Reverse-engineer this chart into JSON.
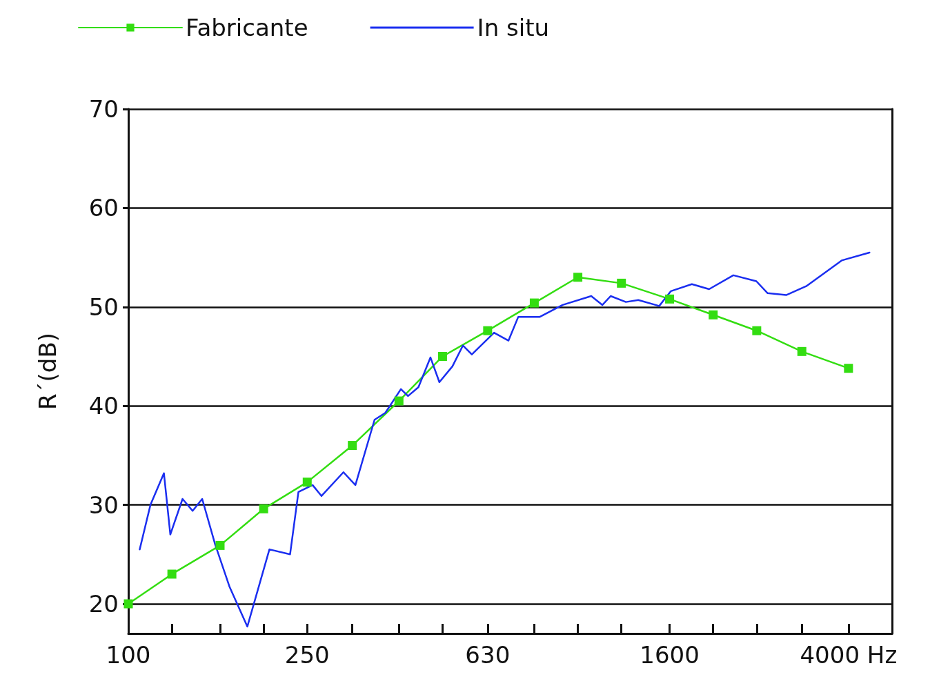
{
  "chart_data": {
    "type": "line",
    "ylabel": "R´(dB)",
    "legend": "top left",
    "grid": "y",
    "log": "x",
    "xlim": [
      100,
      5000
    ],
    "ylim": [
      17,
      70
    ],
    "yticks": [
      20,
      30,
      40,
      50,
      60,
      70
    ],
    "xticks": [
      100,
      {
        "value": 125,
        "label": null
      },
      {
        "value": 160,
        "label": null
      },
      {
        "value": 200,
        "label": null
      },
      250,
      {
        "value": 315,
        "label": null
      },
      {
        "value": 400,
        "label": null
      },
      {
        "value": 500,
        "label": null
      },
      630,
      {
        "value": 800,
        "label": null
      },
      {
        "value": 1000,
        "label": null
      },
      {
        "value": 1250,
        "label": null
      },
      1600,
      {
        "value": 2000,
        "label": null
      },
      {
        "value": 2500,
        "label": null
      },
      {
        "value": 3150,
        "label": null
      },
      {
        "value": 4000,
        "label": "4000 Hz"
      },
      {
        "value": 5000,
        "label": null
      }
    ],
    "series": [
      {
        "name": "Fabricante",
        "color": "#33dd11",
        "marker": "square",
        "x": [
          100,
          125,
          160,
          200,
          250,
          315,
          400,
          500,
          630,
          800,
          1000,
          1250,
          1600,
          2000,
          2500,
          3150,
          4000
        ],
        "values": [
          20,
          23.0,
          25.9,
          29.6,
          32.3,
          36.0,
          40.5,
          45.0,
          47.6,
          50.4,
          53.0,
          52.4,
          50.8,
          49.2,
          47.6,
          45.5,
          43.8
        ]
      },
      {
        "name": "In situ",
        "color": "#1a2ef0",
        "marker": "none",
        "x": [
          106,
          112,
          120,
          124,
          132,
          139,
          146,
          156,
          168,
          184,
          206,
          229,
          239,
          257,
          269,
          301,
          320,
          353,
          373,
          404,
          419,
          442,
          470,
          492,
          526,
          555,
          581,
          651,
          701,
          737,
          823,
          925,
          1071,
          1134,
          1183,
          1279,
          1363,
          1517,
          1611,
          1793,
          1959,
          2218,
          2495,
          2641,
          2907,
          3222,
          3863,
          4454
        ],
        "values": [
          25.5,
          30.0,
          33.2,
          27.0,
          30.6,
          29.4,
          30.6,
          26.0,
          21.7,
          17.7,
          25.5,
          25.0,
          31.3,
          32.0,
          30.9,
          33.3,
          32.0,
          38.6,
          39.3,
          41.7,
          41.0,
          41.9,
          44.9,
          42.4,
          44.0,
          46.1,
          45.2,
          47.4,
          46.6,
          49.0,
          49.0,
          50.2,
          51.1,
          50.2,
          51.1,
          50.5,
          50.7,
          50.1,
          51.6,
          52.3,
          51.8,
          53.2,
          52.6,
          51.4,
          51.2,
          52.1,
          54.7,
          55.5
        ]
      }
    ]
  }
}
